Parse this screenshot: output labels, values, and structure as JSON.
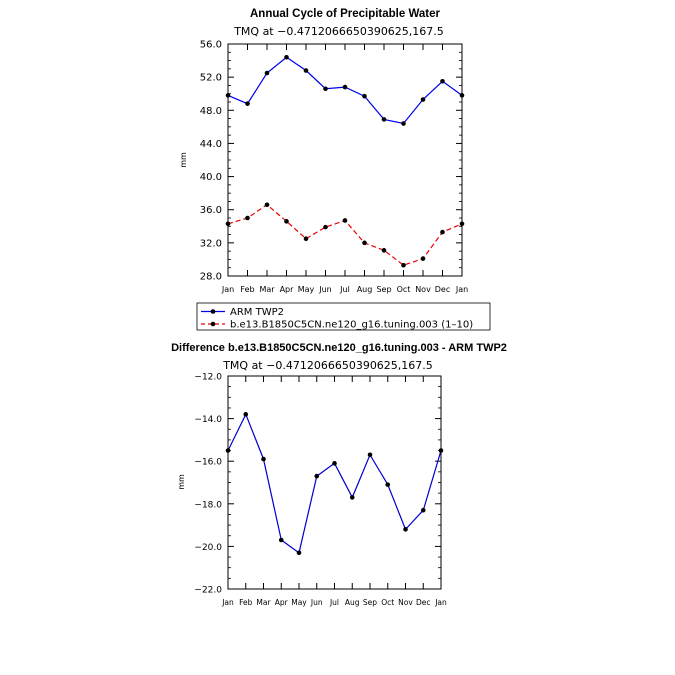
{
  "chart_data": [
    {
      "type": "line",
      "title": "Annual Cycle of Precipitable Water",
      "subtitle": "TMQ at −0.4712066650390625,167.5",
      "ylabel": "mm",
      "xlabel": "",
      "ylim": [
        28.0,
        56.0
      ],
      "yticks": [
        "56.0",
        "52.0",
        "48.0",
        "44.0",
        "40.0",
        "36.0",
        "32.0",
        "28.0"
      ],
      "ytick_values": [
        56,
        52,
        48,
        44,
        40,
        36,
        32,
        28
      ],
      "categories": [
        "Jan",
        "Feb",
        "Mar",
        "Apr",
        "May",
        "Jun",
        "Jul",
        "Aug",
        "Sep",
        "Oct",
        "Nov",
        "Dec",
        "Jan"
      ],
      "series": [
        {
          "name": "ARM TWP2",
          "color": "#0000ee",
          "dash": "solid",
          "values": [
            49.8,
            48.8,
            52.5,
            54.4,
            52.8,
            50.6,
            50.8,
            49.7,
            46.9,
            46.4,
            49.3,
            51.5,
            49.8
          ]
        },
        {
          "name": "b.e13.B1850C5CN.ne120_g16.tuning.003 (1–10)",
          "color": "#ee0000",
          "dash": "dashed",
          "values": [
            34.3,
            35.0,
            36.6,
            34.6,
            32.5,
            33.9,
            34.7,
            32.0,
            31.1,
            29.3,
            30.1,
            33.3,
            34.3
          ]
        }
      ],
      "legend": {
        "placement": "below"
      }
    },
    {
      "type": "line",
      "title": "Difference b.e13.B1850C5CN.ne120_g16.tuning.003 - ARM TWP2",
      "subtitle": "TMQ at −0.4712066650390625,167.5",
      "ylabel": "mm",
      "xlabel": "",
      "ylim": [
        -22.0,
        -12.0
      ],
      "yticks": [
        "−12.0",
        "−14.0",
        "−16.0",
        "−18.0",
        "−20.0",
        "−22.0"
      ],
      "ytick_values": [
        -12,
        -14,
        -16,
        -18,
        -20,
        -22
      ],
      "categories": [
        "Jan",
        "Feb",
        "Mar",
        "Apr",
        "May",
        "Jun",
        "Jul",
        "Aug",
        "Sep",
        "Oct",
        "Nov",
        "Dec",
        "Jan"
      ],
      "series": [
        {
          "name": "difference",
          "color": "#0000cc",
          "dash": "solid",
          "values": [
            -15.5,
            -13.8,
            -15.9,
            -19.7,
            -20.3,
            -16.7,
            -16.1,
            -17.7,
            -15.7,
            -17.1,
            -19.2,
            -18.3,
            -15.5
          ]
        }
      ]
    }
  ]
}
